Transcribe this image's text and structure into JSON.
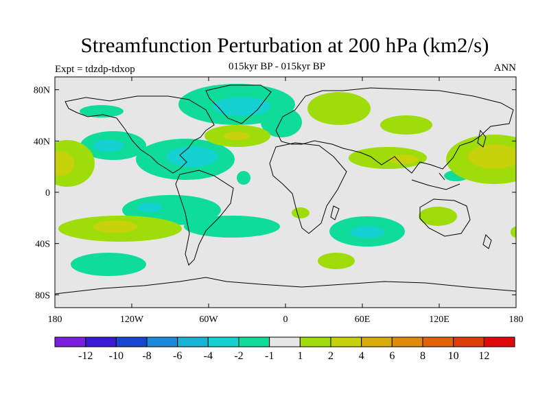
{
  "title": "Streamfunction Perturbation at 200 hPa (km2/s)",
  "subtitle": "015kyr BP - 015kyr BP",
  "experiment": "Expt = tdzdp-tdxop",
  "season": "ANN",
  "axes": {
    "lon_labels": [
      "180",
      "120W",
      "60W",
      "0",
      "60E",
      "120E",
      "180"
    ],
    "lon_values": [
      -180,
      -120,
      -60,
      0,
      60,
      120,
      180
    ],
    "lat_labels": [
      "80N",
      "40N",
      "0",
      "40S",
      "80S"
    ],
    "lat_values": [
      80,
      40,
      0,
      -40,
      -80
    ],
    "lon_range": [
      -180,
      180
    ],
    "lat_range": [
      -90,
      90
    ]
  },
  "colorbar": {
    "colors": [
      "#7a1ee0",
      "#3a18d6",
      "#1846d0",
      "#1b8ad8",
      "#17b4d8",
      "#14d2d2",
      "#10dc9a",
      "#e6e6e6",
      "#9edc0a",
      "#c8d20a",
      "#d8aa0a",
      "#e08a0a",
      "#e0640a",
      "#e03c0a",
      "#e00a0a"
    ],
    "labels": [
      "-12",
      "-10",
      "-8",
      "-6",
      "-4",
      "-2",
      "-1",
      "1",
      "2",
      "4",
      "6",
      "8",
      "10",
      "12"
    ]
  },
  "fill_colors": {
    "neg1": "#10dc9a",
    "neg2": "#14d2d2",
    "pos1": "#9edc0a",
    "pos2": "#c8d20a",
    "background": "#e6e6e6"
  }
}
